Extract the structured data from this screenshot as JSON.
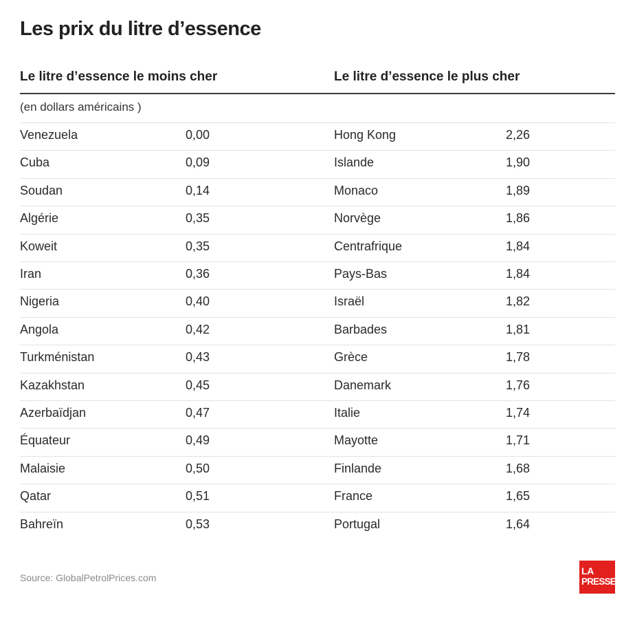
{
  "title": "Les prix du litre d’essence",
  "source": "Source: GlobalPetrolPrices.com",
  "logo": {
    "line1": "LA",
    "line2": "PRESSE",
    "color": "#e2201d"
  },
  "chart_data": {
    "type": "table",
    "title": "Les prix du litre d’essence",
    "unit": "(en dollars américains )",
    "tables": [
      {
        "header": "Le litre d’essence le moins cher",
        "rows": [
          {
            "country": "Venezuela",
            "value": "0,00"
          },
          {
            "country": "Cuba",
            "value": "0,09"
          },
          {
            "country": "Soudan",
            "value": "0,14"
          },
          {
            "country": "Algérie",
            "value": "0,35"
          },
          {
            "country": "Koweit",
            "value": "0,35"
          },
          {
            "country": "Iran",
            "value": "0,36"
          },
          {
            "country": "Nigeria",
            "value": "0,40"
          },
          {
            "country": "Angola",
            "value": "0,42"
          },
          {
            "country": "Turkménistan",
            "value": "0,43"
          },
          {
            "country": "Kazakhstan",
            "value": "0,45"
          },
          {
            "country": "Azerbaïdjan",
            "value": "0,47"
          },
          {
            "country": "Équateur",
            "value": "0,49"
          },
          {
            "country": "Malaisie",
            "value": "0,50"
          },
          {
            "country": "Qatar",
            "value": "0,51"
          },
          {
            "country": "Bahreïn",
            "value": "0,53"
          }
        ]
      },
      {
        "header": "Le litre d’essence le plus cher",
        "rows": [
          {
            "country": "Hong Kong",
            "value": "2,26"
          },
          {
            "country": "Islande",
            "value": "1,90"
          },
          {
            "country": "Monaco",
            "value": "1,89"
          },
          {
            "country": "Norvège",
            "value": "1,86"
          },
          {
            "country": "Centrafrique",
            "value": "1,84"
          },
          {
            "country": "Pays-Bas",
            "value": "1,84"
          },
          {
            "country": "Israël",
            "value": "1,82"
          },
          {
            "country": "Barbades",
            "value": "1,81"
          },
          {
            "country": "Grèce",
            "value": "1,78"
          },
          {
            "country": "Danemark",
            "value": "1,76"
          },
          {
            "country": "Italie",
            "value": "1,74"
          },
          {
            "country": "Mayotte",
            "value": "1,71"
          },
          {
            "country": "Finlande",
            "value": "1,68"
          },
          {
            "country": "France",
            "value": "1,65"
          },
          {
            "country": "Portugal",
            "value": "1,64"
          }
        ]
      }
    ]
  }
}
